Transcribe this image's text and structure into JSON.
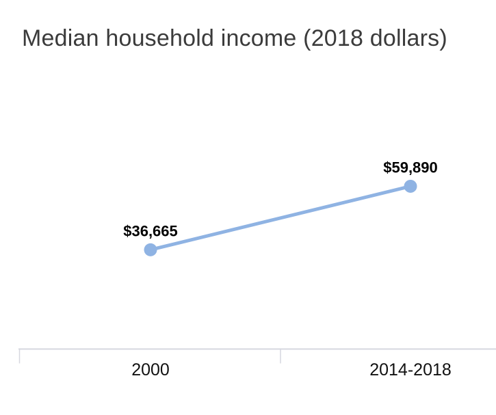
{
  "title": "Median household income (2018 dollars)",
  "chart_data": {
    "type": "line",
    "title": "Median household income (2018 dollars)",
    "categories": [
      "2000",
      "2014-2018"
    ],
    "series": [
      {
        "name": "Median household income (2018 dollars)",
        "values": [
          36665,
          59890
        ]
      }
    ],
    "data_labels": [
      "$36,665",
      "$59,890"
    ],
    "xlabel": "",
    "ylabel": "",
    "ylim": [
      0,
      103000
    ],
    "y_axis_visible": false,
    "grid": false,
    "legend": false,
    "marker": "circle",
    "colors": {
      "series": "#8FB3E3",
      "axis": "#D6D7DF",
      "data_label": "#000000",
      "tick_label": "#111111",
      "title": "#3B3B3B"
    }
  }
}
